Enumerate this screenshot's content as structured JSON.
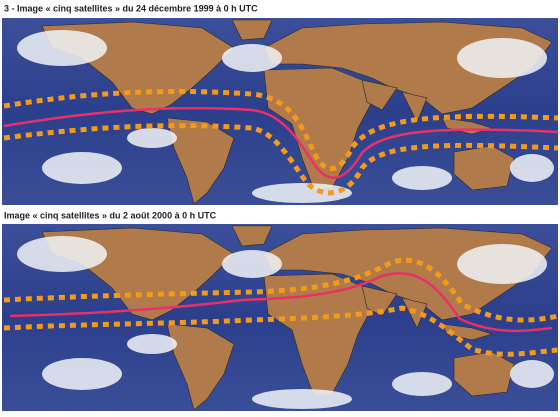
{
  "panels": [
    {
      "caption": "3 - Image « cinq satellites » du 24 décembre 1999 à 0 h UTC"
    },
    {
      "caption": "Image « cinq satellites » du 2 août 2000 à 0 h UTC"
    }
  ]
}
